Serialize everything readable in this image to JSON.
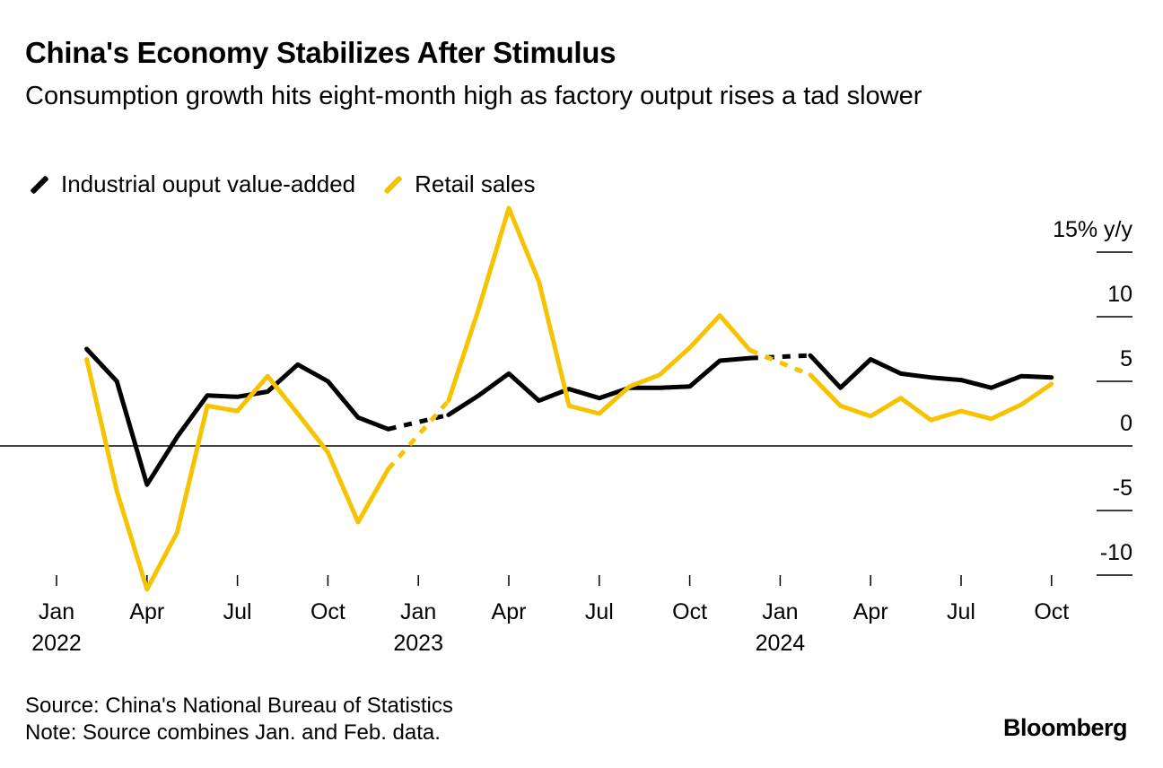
{
  "header": {
    "title": "China's Economy Stabilizes After Stimulus",
    "subtitle": "Consumption growth hits eight-month high as factory output rises a tad slower"
  },
  "footer": {
    "source": "Source: China's National Bureau of Statistics",
    "note": "Note: Source combines Jan. and Feb. data.",
    "brand": "Bloomberg"
  },
  "colors": {
    "industrial": "#000000",
    "retail": "#f5c300",
    "axis": "#000000"
  },
  "chart_data": {
    "type": "line",
    "title": "China's Economy Stabilizes After Stimulus",
    "ylabel": "% y/y",
    "ylim": [
      -10,
      15
    ],
    "yticks": [
      {
        "value": 15,
        "label": "15% y/y"
      },
      {
        "value": 10,
        "label": "10"
      },
      {
        "value": 5,
        "label": "5"
      },
      {
        "value": 0,
        "label": "0"
      },
      {
        "value": -5,
        "label": "-5"
      },
      {
        "value": -10,
        "label": "-10"
      }
    ],
    "xticks": [
      {
        "month": 0,
        "label": "Jan",
        "year": "2022"
      },
      {
        "month": 3,
        "label": "Apr",
        "year": ""
      },
      {
        "month": 6,
        "label": "Jul",
        "year": ""
      },
      {
        "month": 9,
        "label": "Oct",
        "year": ""
      },
      {
        "month": 12,
        "label": "Jan",
        "year": "2023"
      },
      {
        "month": 15,
        "label": "Apr",
        "year": ""
      },
      {
        "month": 18,
        "label": "Jul",
        "year": ""
      },
      {
        "month": 21,
        "label": "Oct",
        "year": ""
      },
      {
        "month": 24,
        "label": "Jan",
        "year": "2024"
      },
      {
        "month": 27,
        "label": "Apr",
        "year": ""
      },
      {
        "month": 30,
        "label": "Jul",
        "year": ""
      },
      {
        "month": 33,
        "label": "Oct",
        "year": ""
      }
    ],
    "x_unit": "months since Jan 2022",
    "series": [
      {
        "name": "Industrial ouput value-added",
        "key": "industrial",
        "x": [
          1,
          2,
          3,
          4,
          5,
          6,
          7,
          8,
          9,
          10,
          11,
          13,
          14,
          15,
          16,
          17,
          18,
          19,
          20,
          21,
          22,
          23,
          25,
          26,
          27,
          28,
          29,
          30,
          31,
          32,
          33
        ],
        "values": [
          7.5,
          5.0,
          -3.0,
          0.7,
          3.9,
          3.8,
          4.2,
          6.3,
          5.0,
          2.2,
          1.3,
          2.4,
          3.9,
          5.6,
          3.5,
          4.4,
          3.7,
          4.5,
          4.5,
          4.6,
          6.6,
          6.8,
          7.0,
          4.5,
          6.7,
          5.6,
          5.3,
          5.1,
          4.5,
          5.4,
          5.3
        ],
        "gaps_dashed": [
          [
            11,
            13
          ],
          [
            23,
            25
          ]
        ]
      },
      {
        "name": "Retail sales",
        "key": "retail",
        "x": [
          1,
          2,
          3,
          4,
          5,
          6,
          7,
          8,
          9,
          10,
          11,
          13,
          14,
          15,
          16,
          17,
          18,
          19,
          20,
          21,
          22,
          23,
          25,
          26,
          27,
          28,
          29,
          30,
          31,
          32,
          33
        ],
        "values": [
          6.7,
          -3.5,
          -11.1,
          -6.7,
          3.1,
          2.7,
          5.4,
          2.5,
          -0.5,
          -5.9,
          -1.8,
          3.5,
          10.6,
          18.4,
          12.7,
          3.1,
          2.5,
          4.6,
          5.5,
          7.6,
          10.1,
          7.4,
          5.5,
          3.1,
          2.3,
          3.7,
          2.0,
          2.7,
          2.1,
          3.2,
          4.8
        ],
        "gaps_dashed": [
          [
            11,
            13
          ],
          [
            23,
            25
          ]
        ]
      }
    ]
  }
}
